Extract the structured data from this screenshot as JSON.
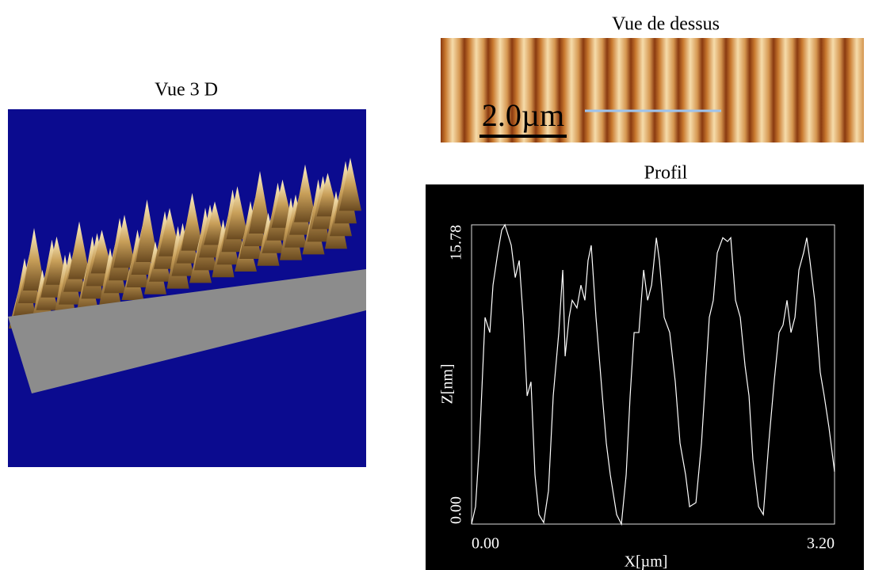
{
  "view_3d": {
    "title": "Vue 3 D"
  },
  "top_view": {
    "title": "Vue de dessus",
    "scale_bar": "2.0µm"
  },
  "chart_data": {
    "type": "line",
    "title": "Profil",
    "x_label": "X[µm]",
    "y_label": "Z[nm]",
    "xlim": [
      0,
      3.2
    ],
    "ylim": [
      0,
      15.78
    ],
    "xticks": [
      {
        "value": 0,
        "label": "0.00"
      },
      {
        "value": 3.2,
        "label": "3.20"
      }
    ],
    "yticks": [
      {
        "value": 0,
        "label": "0.00"
      },
      15.78
    ],
    "grid": false,
    "x": [
      0,
      0.035,
      0.07,
      0.119,
      0.161,
      0.189,
      0.231,
      0.266,
      0.294,
      0.35,
      0.385,
      0.42,
      0.455,
      0.49,
      0.524,
      0.559,
      0.594,
      0.636,
      0.678,
      0.72,
      0.769,
      0.804,
      0.825,
      0.86,
      0.887,
      0.929,
      0.964,
      0.999,
      1.027,
      1.055,
      1.097,
      1.153,
      1.188,
      1.223,
      1.279,
      1.321,
      1.363,
      1.398,
      1.433,
      1.475,
      1.517,
      1.552,
      1.587,
      1.629,
      1.656,
      1.698,
      1.747,
      1.796,
      1.838,
      1.887,
      1.922,
      1.978,
      2.027,
      2.061,
      2.096,
      2.131,
      2.166,
      2.215,
      2.257,
      2.285,
      2.327,
      2.369,
      2.411,
      2.446,
      2.48,
      2.53,
      2.572,
      2.62,
      2.669,
      2.711,
      2.746,
      2.781,
      2.816,
      2.851,
      2.886,
      2.927,
      2.955,
      2.983,
      3.025,
      3.074,
      3.109,
      3.151,
      3.2
    ],
    "series": [
      {
        "color": "#ffffff",
        "values": [
          0,
          0.92,
          4.26,
          10.9,
          10.1,
          12.6,
          14.3,
          15.5,
          15.78,
          14.7,
          13.0,
          13.9,
          10.9,
          6.76,
          7.5,
          2.6,
          0.5,
          0.08,
          1.75,
          6.76,
          10.1,
          13.4,
          8.85,
          10.9,
          11.8,
          11.4,
          12.6,
          11.8,
          13.9,
          14.7,
          10.9,
          6.76,
          4.26,
          2.6,
          0.5,
          0,
          2.6,
          6.76,
          10.1,
          10.1,
          13.4,
          11.8,
          12.6,
          15.1,
          13.9,
          10.9,
          10.1,
          7.5,
          4.26,
          2.6,
          0.92,
          1.13,
          4.26,
          7.5,
          10.9,
          11.8,
          14.3,
          15.1,
          14.9,
          15.1,
          11.8,
          10.9,
          8.35,
          6.76,
          3.42,
          0.92,
          0.5,
          4.26,
          7.6,
          10.1,
          10.5,
          11.8,
          10.1,
          10.9,
          13.4,
          14.3,
          15.1,
          13.9,
          11.8,
          8.0,
          6.76,
          5.09,
          2.76
        ]
      }
    ]
  }
}
